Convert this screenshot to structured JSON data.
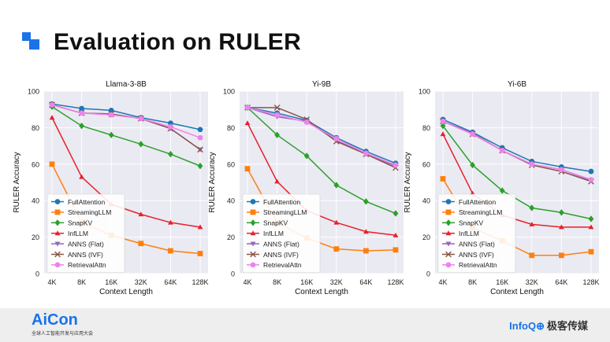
{
  "slide": {
    "title": "Evaluation on RULER",
    "footer_logo": "AiCon",
    "footer_logo_sub": "全球人工智能开发与应用大会",
    "footer_brand_a": "InfoQ",
    "footer_brand_icon": "⊕",
    "footer_brand_b": "极客传媒"
  },
  "colors": {
    "FullAttention": "#1f77b4",
    "StreamingLLM": "#ff7f0e",
    "SnapKV": "#2ca02c",
    "InfLLM": "#e8202a",
    "ANNS (Flat)": "#9467bd",
    "ANNS (IVF)": "#8c564b",
    "RetrievalAttn": "#ee82ee"
  },
  "markers": {
    "FullAttention": "circle",
    "StreamingLLM": "square",
    "SnapKV": "diamond",
    "InfLLM": "triangle-up",
    "ANNS (Flat)": "triangle-down",
    "ANNS (IVF)": "x",
    "RetrievalAttn": "circle"
  },
  "chart_data": [
    {
      "type": "line",
      "title": "Llama-3-8B",
      "xlabel": "Context Length",
      "ylabel": "RULER Accuracy",
      "categories": [
        "4K",
        "8K",
        "16K",
        "32K",
        "64K",
        "128K"
      ],
      "ylim": [
        0,
        100
      ],
      "yticks": [
        0,
        20,
        40,
        60,
        80,
        100
      ],
      "grid": true,
      "legend": "lower-left",
      "series": [
        {
          "name": "FullAttention",
          "values": [
            93,
            90.5,
            89.5,
            85.5,
            82.5,
            79
          ]
        },
        {
          "name": "StreamingLLM",
          "values": [
            60,
            28,
            21,
            16.5,
            12.5,
            11
          ]
        },
        {
          "name": "SnapKV",
          "values": [
            91.5,
            81,
            76,
            71,
            65.5,
            59
          ]
        },
        {
          "name": "InfLLM",
          "values": [
            85.5,
            53,
            38,
            32.5,
            28,
            25.5
          ]
        },
        {
          "name": "ANNS (Flat)",
          "values": [
            92.5,
            88,
            87.5,
            85,
            79.5,
            68
          ]
        },
        {
          "name": "ANNS (IVF)",
          "values": [
            92.5,
            88,
            87.5,
            85,
            79.5,
            68
          ]
        },
        {
          "name": "RetrievalAttn",
          "values": [
            92.5,
            88,
            87,
            85,
            80.5,
            74.5
          ]
        }
      ]
    },
    {
      "type": "line",
      "title": "Yi-9B",
      "xlabel": "Context Length",
      "ylabel": "RULER Accuracy",
      "categories": [
        "4K",
        "8K",
        "16K",
        "32K",
        "64K",
        "128K"
      ],
      "ylim": [
        0,
        100
      ],
      "yticks": [
        0,
        20,
        40,
        60,
        80,
        100
      ],
      "grid": true,
      "legend": "lower-left",
      "series": [
        {
          "name": "FullAttention",
          "values": [
            91,
            88,
            84,
            74.5,
            67,
            60.5
          ]
        },
        {
          "name": "StreamingLLM",
          "values": [
            57.5,
            28,
            19.5,
            13.5,
            12.5,
            13
          ]
        },
        {
          "name": "SnapKV",
          "values": [
            91,
            76,
            64.5,
            48.5,
            39.5,
            33
          ]
        },
        {
          "name": "InfLLM",
          "values": [
            82.5,
            50.5,
            34.5,
            28,
            23,
            21
          ]
        },
        {
          "name": "ANNS (Flat)",
          "values": [
            91,
            86,
            83.5,
            73,
            65.5,
            59
          ]
        },
        {
          "name": "ANNS (IVF)",
          "values": [
            91,
            91,
            84.5,
            72.5,
            65.5,
            58
          ]
        },
        {
          "name": "RetrievalAttn",
          "values": [
            91,
            87,
            83,
            74,
            66,
            59.5
          ]
        }
      ]
    },
    {
      "type": "line",
      "title": "Yi-6B",
      "xlabel": "Context Length",
      "ylabel": "RULER Accuracy",
      "categories": [
        "4K",
        "8K",
        "16K",
        "32K",
        "64K",
        "128K"
      ],
      "ylim": [
        0,
        100
      ],
      "yticks": [
        0,
        20,
        40,
        60,
        80,
        100
      ],
      "grid": true,
      "legend": "lower-left",
      "series": [
        {
          "name": "FullAttention",
          "values": [
            84.5,
            77.5,
            69,
            61.5,
            58.5,
            56
          ]
        },
        {
          "name": "StreamingLLM",
          "values": [
            52,
            25,
            18,
            10,
            10,
            12
          ]
        },
        {
          "name": "SnapKV",
          "values": [
            81,
            59.5,
            45.5,
            36,
            33.5,
            30
          ]
        },
        {
          "name": "InfLLM",
          "values": [
            76.5,
            44,
            32,
            27,
            25.5,
            25.5
          ]
        },
        {
          "name": "ANNS (Flat)",
          "values": [
            83.5,
            77,
            67.5,
            60,
            57,
            51
          ]
        },
        {
          "name": "ANNS (IVF)",
          "values": [
            83.5,
            76.5,
            67.5,
            59.5,
            56,
            50.5
          ]
        },
        {
          "name": "RetrievalAttn",
          "values": [
            83.5,
            76.5,
            67.5,
            60,
            57,
            51.5
          ]
        }
      ]
    }
  ]
}
